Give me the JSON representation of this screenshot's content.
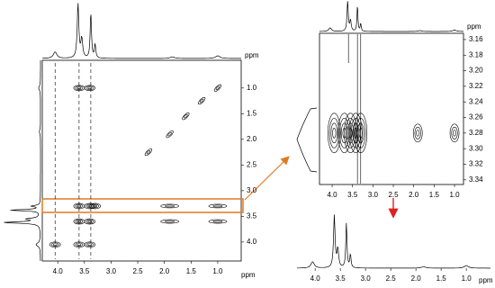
{
  "chart_data": [
    {
      "type": "contour",
      "unit": "ppm",
      "xlim": [
        4.29,
        0.56
      ],
      "ylim": [
        0.46,
        4.37
      ],
      "xticks": [
        {
          "value": 4,
          "label": "4.0"
        },
        3.5,
        {
          "value": 3,
          "label": "3.0"
        },
        2.5,
        {
          "value": 2,
          "label": "2.0"
        },
        1.5,
        {
          "value": 1,
          "label": "1.0"
        }
      ],
      "yticks": [
        {
          "value": 1,
          "label": "1.0"
        },
        1.5,
        {
          "value": 2,
          "label": "2.0"
        },
        2.5,
        {
          "value": 3,
          "label": "3.0"
        },
        3.5,
        {
          "value": 4,
          "label": "4.0"
        }
      ]
    },
    {
      "type": "contour",
      "unit": "ppm",
      "xlim": [
        4.31,
        0.78
      ],
      "ylim": [
        3.152,
        3.346
      ],
      "xticks": [
        {
          "value": 4,
          "label": "4.0"
        },
        3.5,
        {
          "value": 3,
          "label": "3.0"
        },
        2.5,
        {
          "value": 2,
          "label": "2.0"
        },
        1.5,
        {
          "value": 1,
          "label": "1.0"
        }
      ],
      "yticks": [
        3.16,
        3.18,
        {
          "value": 3.2,
          "label": "3.20"
        },
        3.22,
        3.24,
        3.26,
        3.28,
        {
          "value": 3.3,
          "label": "3.30"
        },
        3.32,
        3.34
      ]
    },
    {
      "type": "spectrum",
      "unit": "ppm",
      "xlim": [
        4.36,
        0.52
      ],
      "xticks": [
        {
          "value": 4,
          "label": "4.0"
        },
        3.5,
        {
          "value": 3,
          "label": "3.0"
        },
        2.5,
        {
          "value": 2,
          "label": "2.0"
        },
        1.5,
        {
          "value": 1,
          "label": "1.0"
        }
      ]
    }
  ]
}
